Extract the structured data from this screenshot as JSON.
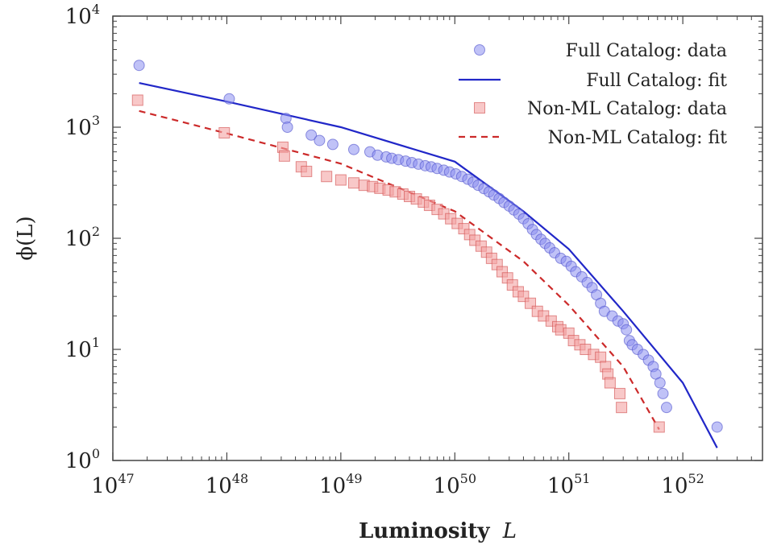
{
  "chart_data": {
    "type": "scatter",
    "xlabel": "Luminosity",
    "xlabel_var": "L",
    "ylabel": "ϕ(L)",
    "x_scale": "log",
    "y_scale": "log",
    "xlim": [
      1e+47,
      5e+52
    ],
    "ylim": [
      1,
      10000
    ],
    "x_ticks": [
      1e+47,
      1e+48,
      1e+49,
      1e+50,
      1e+51,
      1e+52
    ],
    "y_ticks": [
      1,
      10,
      100,
      1000,
      10000
    ],
    "x_tick_labels": [
      {
        "base": "10",
        "exp": "47"
      },
      {
        "base": "10",
        "exp": "48"
      },
      {
        "base": "10",
        "exp": "49"
      },
      {
        "base": "10",
        "exp": "50"
      },
      {
        "base": "10",
        "exp": "51"
      },
      {
        "base": "10",
        "exp": "52"
      }
    ],
    "y_tick_labels": [
      {
        "base": "10",
        "exp": "0"
      },
      {
        "base": "10",
        "exp": "1"
      },
      {
        "base": "10",
        "exp": "2"
      },
      {
        "base": "10",
        "exp": "3"
      },
      {
        "base": "10",
        "exp": "4"
      }
    ],
    "legend_position": "top-right",
    "series": [
      {
        "name": "Full Catalog: data",
        "kind": "scatter",
        "marker": "circle",
        "color": "#8c8ff0",
        "stroke": "#4d50cc",
        "points": [
          [
            1.7e+47,
            3600
          ],
          [
            1.05e+48,
            1800
          ],
          [
            3.3e+48,
            1200
          ],
          [
            3.4e+48,
            1000
          ],
          [
            5.5e+48,
            850
          ],
          [
            6.5e+48,
            760
          ],
          [
            8.5e+48,
            700
          ],
          [
            1.3e+49,
            630
          ],
          [
            1.8e+49,
            600
          ],
          [
            2.1e+49,
            560
          ],
          [
            2.5e+49,
            540
          ],
          [
            2.8e+49,
            525
          ],
          [
            3.2e+49,
            510
          ],
          [
            3.7e+49,
            495
          ],
          [
            4.2e+49,
            480
          ],
          [
            4.8e+49,
            465
          ],
          [
            5.5e+49,
            450
          ],
          [
            6.2e+49,
            440
          ],
          [
            7e+49,
            425
          ],
          [
            8e+49,
            410
          ],
          [
            9e+49,
            395
          ],
          [
            1.02e+50,
            380
          ],
          [
            1.15e+50,
            360
          ],
          [
            1.3e+50,
            340
          ],
          [
            1.45e+50,
            320
          ],
          [
            1.6e+50,
            300
          ],
          [
            1.8e+50,
            280
          ],
          [
            2e+50,
            262
          ],
          [
            2.2e+50,
            245
          ],
          [
            2.45e+50,
            228
          ],
          [
            2.7e+50,
            210
          ],
          [
            3e+50,
            195
          ],
          [
            3.3e+50,
            180
          ],
          [
            3.65e+50,
            165
          ],
          [
            4e+50,
            150
          ],
          [
            4.4e+50,
            135
          ],
          [
            4.8e+50,
            120
          ],
          [
            5.2e+50,
            108
          ],
          [
            5.7e+50,
            98
          ],
          [
            6.2e+50,
            90
          ],
          [
            6.8e+50,
            82
          ],
          [
            7.5e+50,
            74
          ],
          [
            8.5e+50,
            66
          ],
          [
            9.5e+50,
            62
          ],
          [
            1.05e+51,
            56
          ],
          [
            1.15e+51,
            50
          ],
          [
            1.3e+51,
            45
          ],
          [
            1.45e+51,
            40
          ],
          [
            1.6e+51,
            36
          ],
          [
            1.75e+51,
            31
          ],
          [
            1.9e+51,
            26
          ],
          [
            2.05e+51,
            22
          ],
          [
            2.4e+51,
            20
          ],
          [
            2.7e+51,
            18
          ],
          [
            3e+51,
            17
          ],
          [
            3.2e+51,
            15
          ],
          [
            3.4e+51,
            12
          ],
          [
            3.6e+51,
            11
          ],
          [
            4e+51,
            10
          ],
          [
            4.5e+51,
            9
          ],
          [
            5e+51,
            8
          ],
          [
            5.5e+51,
            7
          ],
          [
            5.8e+51,
            6
          ],
          [
            6.3e+51,
            5
          ],
          [
            6.7e+51,
            4
          ],
          [
            7.2e+51,
            3
          ],
          [
            2e+52,
            2
          ]
        ]
      },
      {
        "name": "Full Catalog: fit",
        "kind": "line",
        "style": "solid",
        "color": "#2127c8",
        "points": [
          [
            1.7e+47,
            2500
          ],
          [
            1e+48,
            1700
          ],
          [
            1e+49,
            1000
          ],
          [
            1e+50,
            490
          ],
          [
            4e+50,
            175
          ],
          [
            1e+51,
            80
          ],
          [
            3e+51,
            22
          ],
          [
            1e+52,
            5
          ],
          [
            2e+52,
            1.3
          ]
        ]
      },
      {
        "name": "Non-ML Catalog: data",
        "kind": "scatter",
        "marker": "square",
        "color": "#f4a3a3",
        "stroke": "#d14a4a",
        "points": [
          [
            1.65e+47,
            1750
          ],
          [
            9.5e+47,
            890
          ],
          [
            3.1e+48,
            660
          ],
          [
            3.2e+48,
            550
          ],
          [
            4.5e+48,
            440
          ],
          [
            5e+48,
            400
          ],
          [
            7.5e+48,
            360
          ],
          [
            1e+49,
            335
          ],
          [
            1.3e+49,
            315
          ],
          [
            1.6e+49,
            300
          ],
          [
            1.9e+49,
            292
          ],
          [
            2.2e+49,
            282
          ],
          [
            2.6e+49,
            272
          ],
          [
            3e+49,
            262
          ],
          [
            3.5e+49,
            250
          ],
          [
            4e+49,
            238
          ],
          [
            4.6e+49,
            226
          ],
          [
            5.3e+49,
            212
          ],
          [
            6e+49,
            198
          ],
          [
            7e+49,
            182
          ],
          [
            8e+49,
            166
          ],
          [
            9.2e+49,
            150
          ],
          [
            1.05e+50,
            136
          ],
          [
            1.2e+50,
            122
          ],
          [
            1.35e+50,
            108
          ],
          [
            1.5e+50,
            96
          ],
          [
            1.7e+50,
            85
          ],
          [
            1.9e+50,
            75
          ],
          [
            2.1e+50,
            66
          ],
          [
            2.35e+50,
            58
          ],
          [
            2.6e+50,
            50
          ],
          [
            2.9e+50,
            44
          ],
          [
            3.2e+50,
            38
          ],
          [
            3.6e+50,
            33
          ],
          [
            4e+50,
            30
          ],
          [
            4.6e+50,
            26
          ],
          [
            5.3e+50,
            22
          ],
          [
            6e+50,
            20
          ],
          [
            7e+50,
            18
          ],
          [
            8e+50,
            16
          ],
          [
            8.5e+50,
            15
          ],
          [
            1e+51,
            14
          ],
          [
            1.1e+51,
            12
          ],
          [
            1.25e+51,
            11
          ],
          [
            1.4e+51,
            10
          ],
          [
            1.65e+51,
            9
          ],
          [
            1.9e+51,
            8.5
          ],
          [
            2.1e+51,
            7
          ],
          [
            2.2e+51,
            6
          ],
          [
            2.3e+51,
            5
          ],
          [
            2.8e+51,
            4
          ],
          [
            2.9e+51,
            3
          ],
          [
            6.2e+51,
            2
          ]
        ]
      },
      {
        "name": "Non-ML Catalog: fit",
        "kind": "line",
        "style": "dashed",
        "color": "#cc2a2a",
        "points": [
          [
            1.7e+47,
            1400
          ],
          [
            1e+48,
            880
          ],
          [
            1e+49,
            470
          ],
          [
            1e+50,
            175
          ],
          [
            4e+50,
            62
          ],
          [
            1e+51,
            25
          ],
          [
            3e+51,
            7
          ],
          [
            6.2e+51,
            1.9
          ]
        ]
      }
    ]
  }
}
